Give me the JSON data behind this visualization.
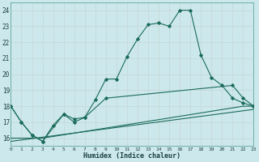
{
  "xlabel": "Humidex (Indice chaleur)",
  "background_color": "#cce8ec",
  "line_color": "#1a6b5a",
  "grid_color": "#c8d8d8",
  "line1_x": [
    0,
    1,
    2,
    3,
    4,
    5,
    6,
    7,
    8,
    9,
    10,
    11,
    12,
    13,
    14,
    15,
    16,
    17,
    18,
    19,
    20,
    21,
    22,
    23
  ],
  "line1_y": [
    18.0,
    17.0,
    16.2,
    15.8,
    16.8,
    17.5,
    17.2,
    17.3,
    18.4,
    19.7,
    19.7,
    21.1,
    22.2,
    23.1,
    23.2,
    23.0,
    24.0,
    24.0,
    21.2,
    19.8,
    19.3,
    18.5,
    18.2,
    18.0
  ],
  "line2_x": [
    0,
    1,
    2,
    3,
    5,
    6,
    7,
    9,
    21,
    22,
    23
  ],
  "line2_y": [
    18.0,
    17.0,
    16.2,
    15.8,
    17.5,
    17.0,
    17.3,
    18.5,
    19.3,
    18.5,
    18.0
  ],
  "line3_x": [
    0,
    3,
    22,
    23
  ],
  "line3_y": [
    16.0,
    16.0,
    18.0,
    18.0
  ],
  "line4_x": [
    0,
    23
  ],
  "line4_y": [
    15.8,
    17.8
  ],
  "xmin": 0,
  "xmax": 23,
  "ymin": 15.5,
  "ymax": 24.5,
  "yticks": [
    16,
    17,
    18,
    19,
    20,
    21,
    22,
    23,
    24
  ],
  "xticks": [
    0,
    1,
    2,
    3,
    4,
    5,
    6,
    7,
    8,
    9,
    10,
    11,
    12,
    13,
    14,
    15,
    16,
    17,
    18,
    19,
    20,
    21,
    22,
    23
  ]
}
